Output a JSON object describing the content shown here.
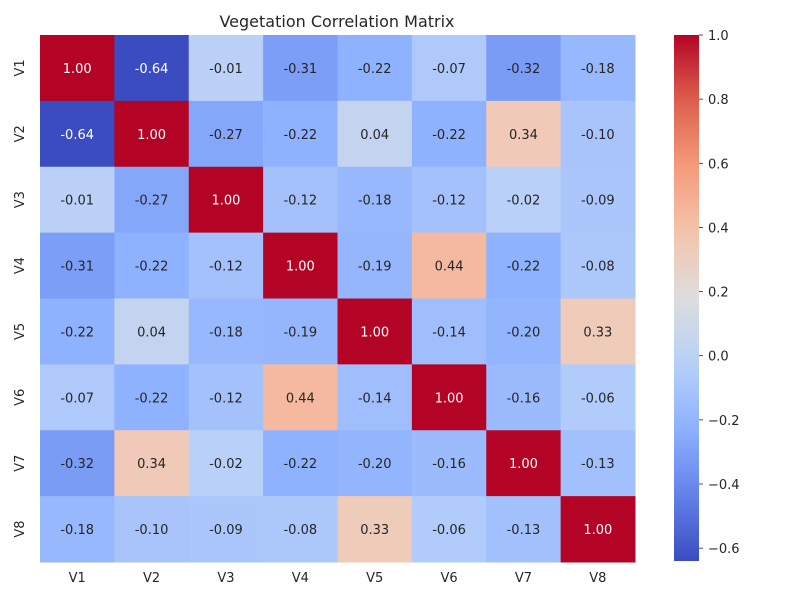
{
  "chart_data": {
    "type": "heatmap",
    "title": "Vegetation Correlation Matrix",
    "xlabel": "",
    "ylabel": "",
    "x_labels": [
      "V1",
      "V2",
      "V3",
      "V4",
      "V5",
      "V6",
      "V7",
      "V8"
    ],
    "y_labels": [
      "V1",
      "V2",
      "V3",
      "V4",
      "V5",
      "V6",
      "V7",
      "V8"
    ],
    "values": [
      [
        1.0,
        -0.64,
        -0.01,
        -0.31,
        -0.22,
        -0.07,
        -0.32,
        -0.18
      ],
      [
        -0.64,
        1.0,
        -0.27,
        -0.22,
        0.04,
        -0.22,
        0.34,
        -0.1
      ],
      [
        -0.01,
        -0.27,
        1.0,
        -0.12,
        -0.18,
        -0.12,
        -0.02,
        -0.09
      ],
      [
        -0.31,
        -0.22,
        -0.12,
        1.0,
        -0.19,
        0.44,
        -0.22,
        -0.08
      ],
      [
        -0.22,
        0.04,
        -0.18,
        -0.19,
        1.0,
        -0.14,
        -0.2,
        0.33
      ],
      [
        -0.07,
        -0.22,
        -0.12,
        0.44,
        -0.14,
        1.0,
        -0.16,
        -0.06
      ],
      [
        -0.32,
        0.34,
        -0.02,
        -0.22,
        -0.2,
        -0.16,
        1.0,
        -0.13
      ],
      [
        -0.18,
        -0.1,
        -0.09,
        -0.08,
        0.33,
        -0.06,
        -0.13,
        1.0
      ]
    ],
    "annotations_format": "2 decimals",
    "colormap": "coolwarm",
    "colorbar": {
      "range": [
        -0.64,
        1.0
      ],
      "ticks": [
        -0.6,
        -0.4,
        -0.2,
        0.0,
        0.2,
        0.4,
        0.6,
        0.8,
        1.0
      ],
      "tick_labels": [
        "−0.6",
        "−0.4",
        "−0.2",
        "0.0",
        "0.2",
        "0.4",
        "0.6",
        "0.8",
        "1.0"
      ]
    },
    "grid": false
  }
}
